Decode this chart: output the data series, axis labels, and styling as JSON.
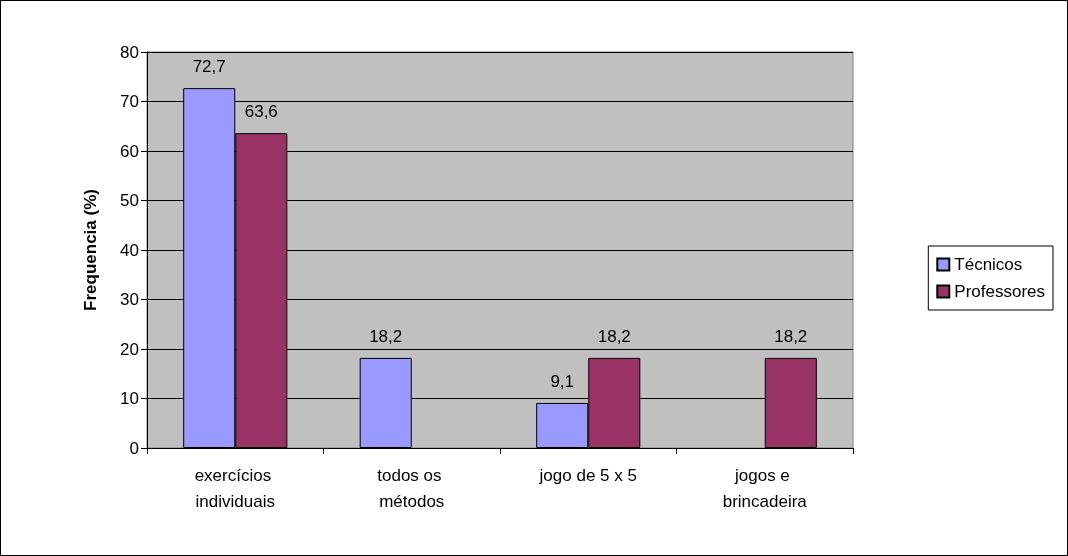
{
  "chart_data": {
    "type": "bar",
    "ylabel": "Frequencia (%)",
    "categories": [
      "exercícios individuais",
      "todos os métodos",
      "jogo de 5 x 5",
      "jogos e brincadeira"
    ],
    "series": [
      {
        "name": "Técnicos",
        "color": "#9999ff",
        "values": [
          72.7,
          18.2,
          9.1,
          null
        ],
        "value_labels": [
          "72,7",
          "18,2",
          "9,1",
          null
        ]
      },
      {
        "name": "Professores",
        "color": "#993366",
        "values": [
          63.6,
          null,
          18.2,
          18.2
        ],
        "value_labels": [
          "63,6",
          null,
          "18,2",
          "18,2"
        ]
      }
    ],
    "ylim": [
      0,
      80
    ],
    "yticks": [
      0,
      10,
      20,
      30,
      40,
      50,
      60,
      70,
      80
    ],
    "grid": "y",
    "legend": "right"
  }
}
